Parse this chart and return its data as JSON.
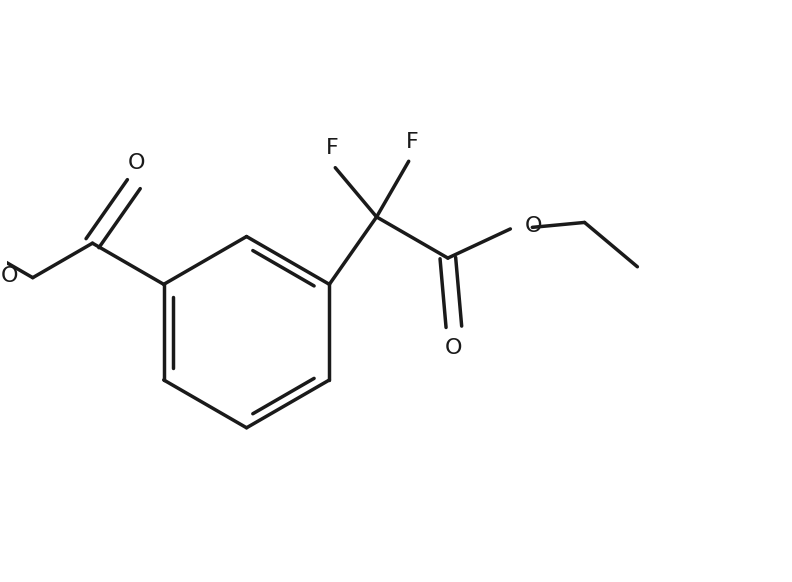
{
  "background_color": "#ffffff",
  "line_color": "#1a1a1a",
  "line_width": 2.5,
  "font_size": 16,
  "figsize": [
    7.92,
    5.82
  ],
  "dpi": 100,
  "xlim": [
    0,
    10
  ],
  "ylim": [
    0,
    7.35
  ]
}
